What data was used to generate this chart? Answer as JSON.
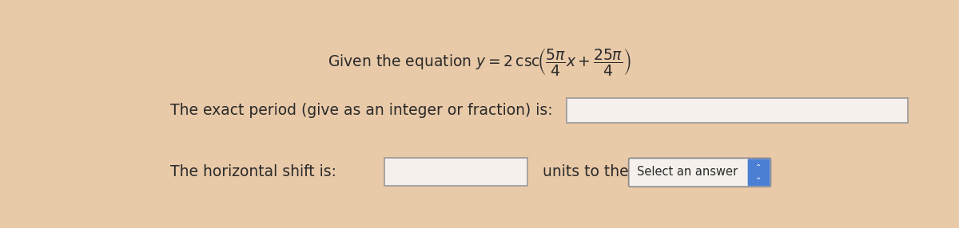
{
  "background_color": "#e8c9a8",
  "period_label": "The exact period (give as an integer or fraction) is:",
  "shift_label": "The horizontal shift is:",
  "units_label": "units to the",
  "select_label": "Select an answer",
  "text_color": "#2a2a2a",
  "box_color": "#f5f0eb",
  "box_border": "#999999",
  "select_bg": "#4a7fd4",
  "select_text_color": "#ffffff",
  "font_size_main": 13.5,
  "font_size_eq": 13.5,
  "eq_text": "Given the equation $y = 2\\,\\mathrm{csc}\\!\\left(\\dfrac{5\\pi}{4}x + \\dfrac{25\\pi}{4}\\right)$"
}
